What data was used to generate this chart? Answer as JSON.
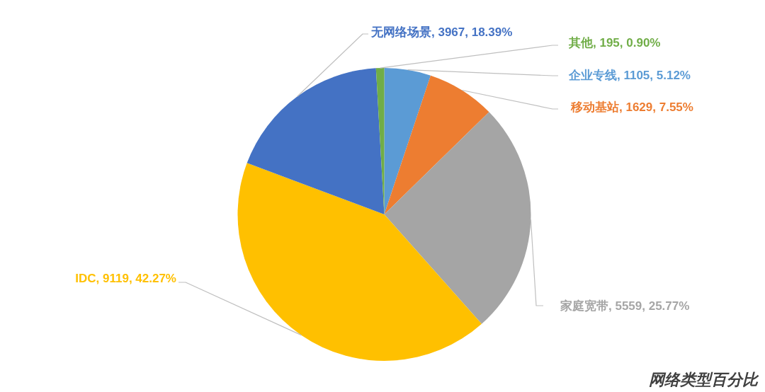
{
  "chart_data": {
    "type": "pie",
    "title": "网络类型百分比",
    "categories": [
      "企业专线",
      "移动基站",
      "家庭宽带",
      "IDC",
      "无网络场景",
      "其他"
    ],
    "values": [
      1105,
      1629,
      5559,
      9119,
      3967,
      195
    ],
    "colors": [
      "#5b9bd5",
      "#ed7d31",
      "#a5a5a5",
      "#ffc000",
      "#4472c4",
      "#70ad47"
    ],
    "value_labels": [
      "1105, 5.12%",
      "1629, 7.55%",
      "5559, 25.77%",
      "9119, 42.27%",
      "3967, 18.39%",
      "195, 0.90%"
    ]
  }
}
